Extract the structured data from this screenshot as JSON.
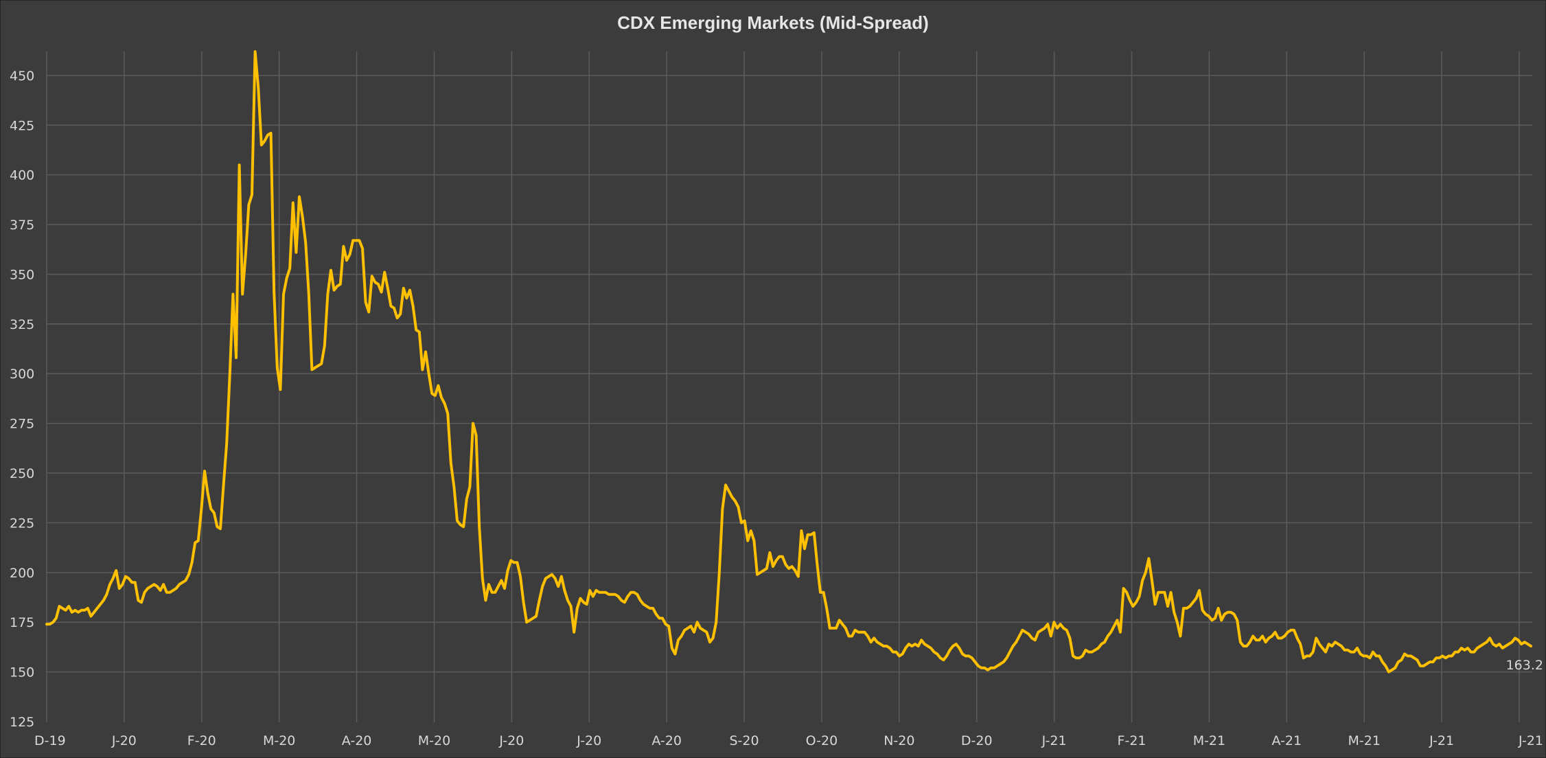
{
  "chart_data": {
    "type": "line",
    "title": "CDX Emerging Markets (Mid-Spread)",
    "xlabel": "",
    "ylabel": "",
    "ylim": [
      125,
      465
    ],
    "yticks": [
      125,
      150,
      175,
      200,
      225,
      250,
      275,
      300,
      325,
      350,
      375,
      400,
      425,
      450
    ],
    "xtick_labels": [
      "D-19",
      "J-20",
      "F-20",
      "M-20",
      "A-20",
      "M-20",
      "J-20",
      "J-20",
      "A-20",
      "S-20",
      "O-20",
      "N-20",
      "D-20",
      "J-21",
      "F-21",
      "M-21",
      "A-21",
      "M-21",
      "J-21",
      "J-21"
    ],
    "grid": true,
    "line_color": "#FFC000",
    "end_label": "163.2",
    "series": [
      {
        "values": [
          174,
          174,
          175,
          177,
          183,
          182,
          181,
          183,
          180,
          181,
          180,
          181,
          181,
          182,
          178,
          180,
          182,
          184,
          186,
          189,
          194,
          197,
          201,
          192,
          194,
          198,
          197,
          195,
          195,
          186,
          185,
          190,
          192,
          193,
          194,
          193,
          191,
          194,
          190,
          190,
          191,
          192,
          194,
          195,
          196,
          199,
          205,
          215,
          216,
          232,
          251,
          240,
          232,
          230,
          223,
          222,
          244,
          265,
          300,
          340,
          308,
          405,
          340,
          360,
          385,
          390,
          462,
          444,
          415,
          417,
          420,
          421,
          341,
          303,
          292,
          340,
          348,
          353,
          386,
          361,
          389,
          379,
          366,
          340,
          302,
          303,
          304,
          305,
          314,
          340,
          352,
          342,
          344,
          345,
          364,
          357,
          360,
          367,
          367,
          367,
          363,
          336,
          331,
          349,
          346,
          345,
          341,
          351,
          343,
          334,
          333,
          328,
          330,
          343,
          338,
          342,
          334,
          322,
          321,
          302,
          311,
          300,
          290,
          289,
          294,
          288,
          285,
          280,
          255,
          243,
          226,
          224,
          223,
          237,
          243,
          275,
          269,
          223,
          197,
          186,
          194,
          190,
          190,
          193,
          196,
          192,
          201,
          206,
          205,
          205,
          198,
          185,
          175,
          176,
          177,
          178,
          186,
          193,
          197,
          198,
          199,
          197,
          193,
          198,
          191,
          186,
          183,
          170,
          182,
          187,
          185,
          184,
          191,
          188,
          191,
          190,
          190,
          190,
          189,
          189,
          189,
          188,
          186,
          185,
          188,
          190,
          190,
          189,
          186,
          184,
          183,
          182,
          182,
          179,
          177,
          177,
          174,
          173,
          162,
          159,
          166,
          168,
          171,
          172,
          173,
          170,
          175,
          172,
          171,
          170,
          165,
          167,
          175,
          200,
          232,
          244,
          241,
          238,
          236,
          233,
          225,
          226,
          216,
          221,
          216,
          199,
          200,
          201,
          202,
          210,
          203,
          206,
          208,
          208,
          204,
          202,
          203,
          201,
          198,
          221,
          212,
          219,
          219,
          220,
          204,
          190,
          190,
          182,
          172,
          172,
          172,
          176,
          174,
          172,
          168,
          168,
          171,
          170,
          170,
          170,
          168,
          165,
          167,
          165,
          164,
          163,
          163,
          162,
          160,
          160,
          158,
          159,
          162,
          164,
          163,
          164,
          163,
          166,
          164,
          163,
          162,
          160,
          159,
          157,
          156,
          158,
          161,
          163,
          164,
          162,
          159,
          158,
          158,
          157,
          155,
          153,
          152,
          152,
          151,
          152,
          152,
          153,
          154,
          155,
          157,
          160,
          163,
          165,
          168,
          171,
          170,
          169,
          167,
          166,
          170,
          171,
          172,
          174,
          168,
          175,
          172,
          174,
          172,
          171,
          167,
          158,
          157,
          157,
          158,
          161,
          160,
          160,
          161,
          162,
          164,
          165,
          168,
          170,
          173,
          176,
          170,
          192,
          190,
          186,
          183,
          185,
          188,
          196,
          200,
          207,
          196,
          184,
          190,
          190,
          190,
          183,
          190,
          180,
          175,
          168,
          182,
          182,
          183,
          185,
          187,
          191,
          181,
          179,
          178,
          176,
          177,
          182,
          176,
          179,
          180,
          180,
          179,
          176,
          165,
          163,
          163,
          165,
          168,
          166,
          166,
          168,
          165,
          167,
          168,
          170,
          167,
          167,
          168,
          170,
          171,
          171,
          167,
          164,
          157,
          158,
          158,
          160,
          167,
          164,
          162,
          160,
          164,
          163,
          165,
          164,
          163,
          161,
          161,
          160,
          160,
          162,
          159,
          158,
          158,
          157,
          160,
          158,
          158,
          155,
          153,
          150,
          151,
          152,
          155,
          156,
          159,
          158,
          158,
          157,
          156,
          153,
          153,
          154,
          155,
          155,
          157,
          157,
          158,
          157,
          158,
          158,
          160,
          160,
          162,
          161,
          162,
          160,
          160,
          162,
          163,
          164,
          165,
          167,
          164,
          163,
          164,
          162,
          163,
          164,
          165,
          167,
          166,
          164,
          165,
          164,
          163
        ]
      }
    ]
  }
}
